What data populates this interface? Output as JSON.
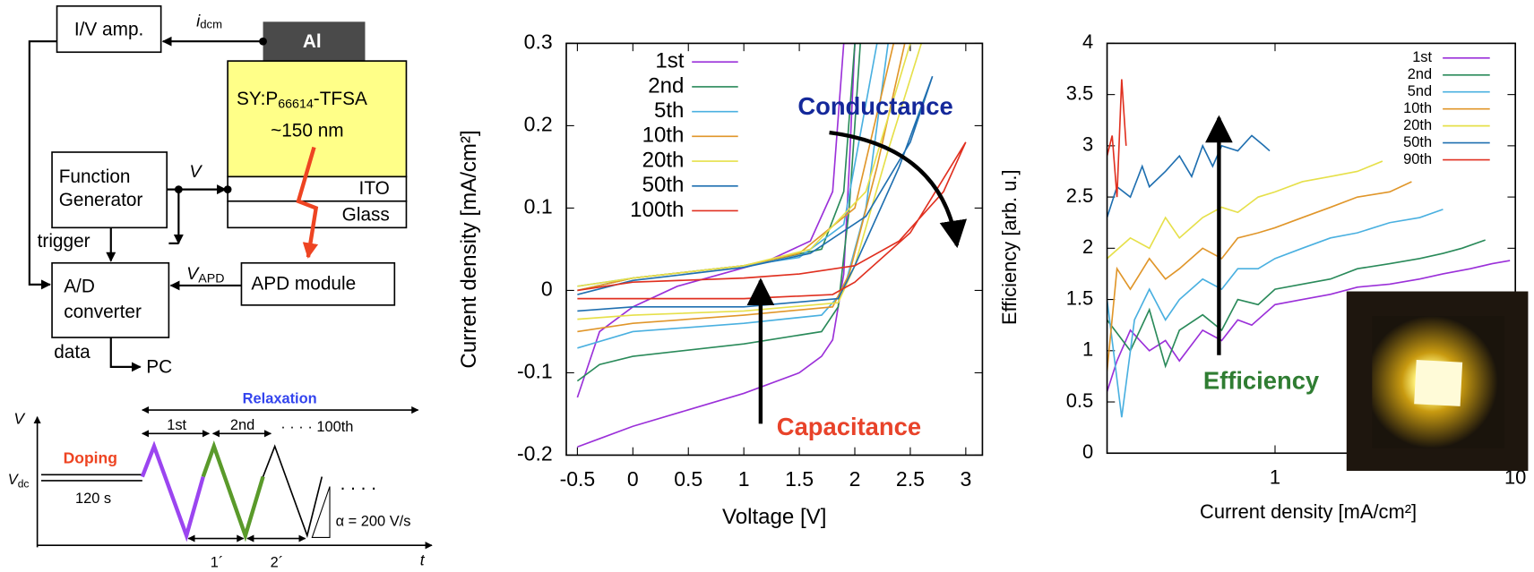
{
  "diagram": {
    "schematic": {
      "iv_amp": "I/V amp.",
      "current": {
        "text": "i",
        "sub": "dcm"
      },
      "electrode": "Al",
      "layer": {
        "text": "SY:P",
        "sub": "66614",
        "suffix": "-TFSA"
      },
      "thickness": "~150 nm",
      "ito": "ITO",
      "glass": "Glass",
      "function_generator": [
        "Function",
        "Generator"
      ],
      "voltage": "V",
      "trigger": "trigger",
      "adc": [
        "A/D",
        "converter"
      ],
      "apd_voltage": {
        "text": "V",
        "sub": "APD"
      },
      "apd": "APD module",
      "data": "data",
      "pc": "PC"
    },
    "waveform": {
      "y_axis": "V",
      "x_axis": "t",
      "vdc": {
        "text": "V",
        "sub": "dc"
      },
      "doping": "Doping",
      "hold": "120 s",
      "relaxation": "Relaxation",
      "cycles": [
        "1st",
        "2nd",
        "· · · ·  100th"
      ],
      "periods": [
        "1´",
        "2´"
      ],
      "rate": "α = 200 V/s",
      "more": ". . . ."
    }
  },
  "chart_data": [
    {
      "type": "line",
      "x_label": "Voltage [V]",
      "y_label": "Current density [mA/cm²]",
      "xlim": [
        -0.6,
        3.15
      ],
      "ylim": [
        -0.2,
        0.3
      ],
      "xticks": [
        -0.5,
        0,
        0.5,
        1,
        1.5,
        2,
        2.5,
        3
      ],
      "yticks": [
        -0.2,
        -0.1,
        0,
        0.1,
        0.2,
        0.3
      ],
      "legend": "upper left",
      "annotations": [
        {
          "text": "Conductance",
          "color": "#14289a"
        },
        {
          "text": "Capacitance",
          "color": "#e8432a"
        }
      ],
      "series": [
        {
          "name": "1st",
          "color": "#9b30d9",
          "x": [
            -0.5,
            -0.3,
            0,
            0.5,
            1,
            1.5,
            1.7,
            1.8,
            1.9,
            1.95,
            2.0,
            1.9,
            1.8,
            1.6,
            1.2,
            0.8,
            0.4,
            0,
            -0.3,
            -0.5
          ],
          "values": [
            -0.19,
            -0.18,
            -0.165,
            -0.145,
            -0.125,
            -0.1,
            -0.08,
            -0.06,
            0.02,
            0.15,
            0.3,
            0.3,
            0.12,
            0.06,
            0.035,
            0.02,
            0.005,
            -0.02,
            -0.05,
            -0.13
          ]
        },
        {
          "name": "2nd",
          "color": "#2a8a5a",
          "x": [
            -0.5,
            -0.3,
            0,
            1,
            1.7,
            1.85,
            1.95,
            2.05,
            2.0,
            1.9,
            1.7,
            1,
            0,
            -0.5
          ],
          "values": [
            -0.11,
            -0.09,
            -0.08,
            -0.065,
            -0.05,
            -0.02,
            0.1,
            0.3,
            0.3,
            0.12,
            0.05,
            0.03,
            0.015,
            0
          ]
        },
        {
          "name": "5th",
          "color": "#4ab0e0",
          "x": [
            -0.5,
            0,
            1,
            1.7,
            1.9,
            2.1,
            2.3,
            2.2,
            1.9,
            1.5,
            1,
            0,
            -0.5
          ],
          "values": [
            -0.07,
            -0.05,
            -0.04,
            -0.03,
            0,
            0.1,
            0.3,
            0.3,
            0.08,
            0.04,
            0.03,
            0.015,
            0.005
          ]
        },
        {
          "name": "10th",
          "color": "#e0962a",
          "x": [
            -0.5,
            0,
            1,
            1.8,
            1.95,
            2.2,
            2.45,
            2.35,
            2.0,
            1.5,
            1,
            0,
            -0.5
          ],
          "values": [
            -0.05,
            -0.04,
            -0.03,
            -0.02,
            0.02,
            0.15,
            0.3,
            0.3,
            0.1,
            0.045,
            0.03,
            0.015,
            0
          ]
        },
        {
          "name": "20th",
          "color": "#e6e04a",
          "x": [
            -0.5,
            0,
            1,
            1.85,
            2.0,
            2.3,
            2.6,
            2.5,
            2.1,
            1.6,
            1,
            0,
            -0.5
          ],
          "values": [
            -0.035,
            -0.03,
            -0.025,
            -0.015,
            0.03,
            0.17,
            0.3,
            0.3,
            0.12,
            0.05,
            0.03,
            0.015,
            0.005
          ]
        },
        {
          "name": "50th",
          "color": "#1f6fb0",
          "x": [
            -0.5,
            0,
            1,
            1.85,
            2.0,
            2.4,
            2.7,
            2.5,
            2.1,
            1.6,
            1,
            0,
            -0.5
          ],
          "values": [
            -0.025,
            -0.02,
            -0.02,
            -0.01,
            0.03,
            0.15,
            0.26,
            0.18,
            0.09,
            0.045,
            0.028,
            0.012,
            -0.005
          ]
        },
        {
          "name": "100th",
          "color": "#e03020",
          "x": [
            -0.5,
            0,
            1,
            1.8,
            2.0,
            2.5,
            3.0,
            2.8,
            2.4,
            2.0,
            1.5,
            1,
            0,
            -0.5
          ],
          "values": [
            -0.01,
            -0.01,
            -0.01,
            -0.005,
            0.01,
            0.07,
            0.18,
            0.12,
            0.06,
            0.03,
            0.02,
            0.015,
            0.01,
            0
          ]
        }
      ]
    },
    {
      "type": "line",
      "x_label": "Current density [mA/cm²]",
      "y_label": "Efficiency [arb. u.]",
      "xscale": "log",
      "xlim": [
        0.2,
        10
      ],
      "ylim": [
        0,
        4
      ],
      "xticks": [
        1,
        10
      ],
      "yticks": [
        0,
        0.5,
        1,
        1.5,
        2,
        2.5,
        3,
        3.5,
        4
      ],
      "legend": "upper right",
      "annotations": [
        {
          "text": "Efficiency",
          "color": "#2f7d32"
        }
      ],
      "series": [
        {
          "name": "1st",
          "color": "#9b30d9",
          "x": [
            0.2,
            0.22,
            0.25,
            0.3,
            0.35,
            0.4,
            0.5,
            0.6,
            0.7,
            0.8,
            1,
            1.3,
            1.7,
            2.2,
            3,
            4,
            5,
            6.5,
            8,
            9.5
          ],
          "values": [
            0.6,
            0.9,
            1.2,
            1.0,
            1.1,
            0.9,
            1.2,
            1.1,
            1.3,
            1.25,
            1.45,
            1.5,
            1.55,
            1.62,
            1.65,
            1.7,
            1.75,
            1.8,
            1.85,
            1.88
          ]
        },
        {
          "name": "2nd",
          "color": "#2a8a5a",
          "x": [
            0.2,
            0.25,
            0.3,
            0.35,
            0.4,
            0.5,
            0.6,
            0.7,
            0.85,
            1,
            1.3,
            1.7,
            2.2,
            3,
            4,
            5,
            6,
            7.5
          ],
          "values": [
            1.3,
            1.0,
            1.4,
            0.85,
            1.2,
            1.35,
            1.2,
            1.5,
            1.45,
            1.6,
            1.65,
            1.7,
            1.8,
            1.85,
            1.9,
            1.95,
            2.0,
            2.08
          ]
        },
        {
          "name": "5nd",
          "color": "#4ab0e0",
          "x": [
            0.2,
            0.23,
            0.26,
            0.3,
            0.35,
            0.4,
            0.5,
            0.6,
            0.7,
            0.85,
            1,
            1.3,
            1.7,
            2.2,
            3,
            4,
            5
          ],
          "values": [
            1.5,
            0.35,
            1.3,
            1.6,
            1.3,
            1.5,
            1.7,
            1.6,
            1.8,
            1.8,
            1.9,
            2.0,
            2.1,
            2.15,
            2.25,
            2.3,
            2.38
          ]
        },
        {
          "name": "10th",
          "color": "#e0962a",
          "x": [
            0.2,
            0.22,
            0.25,
            0.3,
            0.35,
            0.4,
            0.5,
            0.6,
            0.7,
            0.85,
            1,
            1.3,
            1.7,
            2.2,
            3,
            3.7
          ],
          "values": [
            0.8,
            1.8,
            1.6,
            1.9,
            1.7,
            1.8,
            2.0,
            1.9,
            2.1,
            2.15,
            2.2,
            2.3,
            2.4,
            2.5,
            2.55,
            2.65
          ]
        },
        {
          "name": "20th",
          "color": "#e6e04a",
          "x": [
            0.2,
            0.25,
            0.3,
            0.35,
            0.4,
            0.5,
            0.6,
            0.7,
            0.85,
            1,
            1.3,
            1.7,
            2.2,
            2.8
          ],
          "values": [
            1.9,
            2.1,
            2.0,
            2.3,
            2.1,
            2.3,
            2.4,
            2.35,
            2.5,
            2.55,
            2.65,
            2.7,
            2.75,
            2.85
          ]
        },
        {
          "name": "50th",
          "color": "#1f6fb0",
          "x": [
            0.2,
            0.22,
            0.25,
            0.28,
            0.3,
            0.35,
            0.4,
            0.45,
            0.5,
            0.55,
            0.6,
            0.7,
            0.8,
            0.9,
            0.95
          ],
          "values": [
            2.3,
            2.6,
            2.5,
            2.8,
            2.6,
            2.75,
            2.9,
            2.7,
            3.0,
            2.8,
            3.0,
            2.95,
            3.1,
            3.0,
            2.95
          ]
        },
        {
          "name": "90th",
          "color": "#e03020",
          "x": [
            0.2,
            0.21,
            0.22,
            0.23,
            0.24
          ],
          "values": [
            2.9,
            3.1,
            2.5,
            3.65,
            3.0
          ]
        }
      ]
    }
  ]
}
